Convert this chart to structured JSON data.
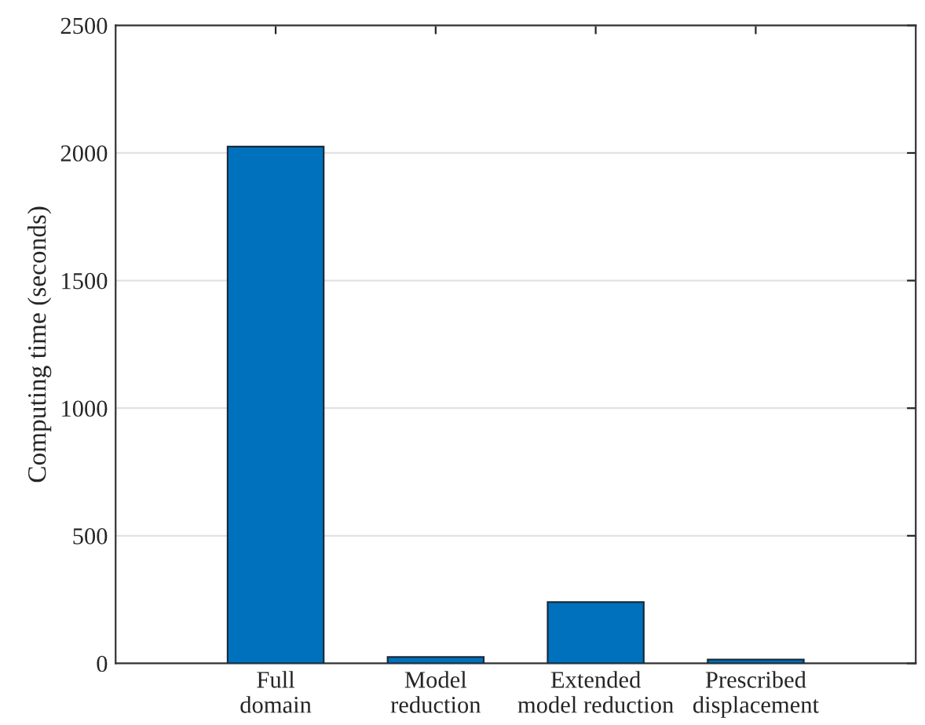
{
  "chart_data": {
    "type": "bar",
    "ylabel": "Computing time (seconds)",
    "categories": [
      "Full\ndomain",
      "Model\nreduction",
      "Extended\nmodel reduction",
      "Prescribed\ndisplacement"
    ],
    "values": [
      2025,
      25,
      240,
      15
    ],
    "color": "#0072bd",
    "ylim": [
      0,
      2500
    ],
    "yticks": [
      0,
      500,
      1000,
      1500,
      2000,
      2500
    ],
    "grid": "y"
  }
}
